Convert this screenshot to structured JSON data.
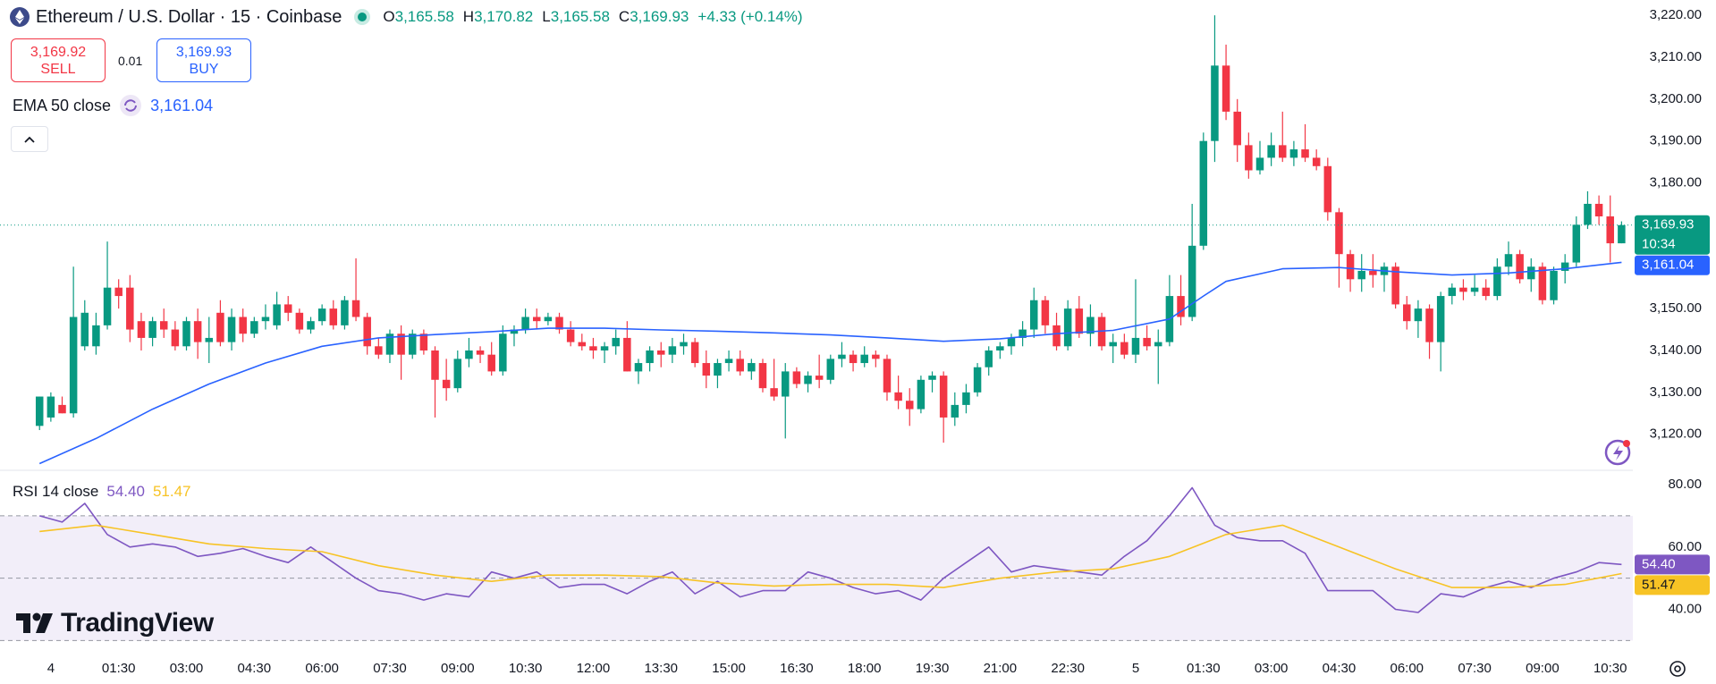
{
  "trade": {
    "sell_price": "3,169.92",
    "sell": "SELL",
    "spread": "0.01",
    "buy_price": "3,169.93",
    "buy": "BUY"
  },
  "logo": "TradingView",
  "chart_data": [
    {
      "type": "candlestick",
      "title": "Ethereum / U.S. Dollar · 15 · Coinbase",
      "ohlc_labels": [
        {
          "key": "O",
          "value": "3,165.58"
        },
        {
          "key": "H",
          "value": "3,170.82"
        },
        {
          "key": "L",
          "value": "3,165.58"
        },
        {
          "key": "C",
          "value": "3,169.93"
        }
      ],
      "change": "+4.33 (+0.14%)",
      "last_price_label": "3,169.93",
      "countdown": "10:34",
      "xlim": [
        -3.5,
        141
      ],
      "ylim": [
        3111.4,
        3223.65
      ],
      "yticks": [
        {
          "value": 3120,
          "label": "3,120.00"
        },
        {
          "value": 3130,
          "label": "3,130.00"
        },
        {
          "value": 3140,
          "label": "3,140.00"
        },
        {
          "value": 3150,
          "label": "3,150.00"
        },
        {
          "value": 3160,
          "label": "3,160.00"
        },
        {
          "value": 3170,
          "label": "3,170.00"
        },
        {
          "value": 3180,
          "label": "3,180.00"
        },
        {
          "value": 3190,
          "label": "3,190.00"
        },
        {
          "value": 3200,
          "label": "3,200.00"
        },
        {
          "value": 3210,
          "label": "3,210.00"
        },
        {
          "value": 3220,
          "label": "3,220.00"
        }
      ],
      "candles": {
        "color_up": "#089981",
        "color_down": "#f23645",
        "open": [
          3122,
          3124,
          3127,
          3125,
          3141,
          3141,
          3146,
          3155,
          3155,
          3147,
          3143,
          3147,
          3145,
          3141,
          3147,
          3142,
          3149,
          3142,
          3148,
          3144,
          3147,
          3146,
          3151,
          3149,
          3145,
          3147,
          3150,
          3146,
          3152,
          3148,
          3141,
          3139,
          3144,
          3139,
          3144,
          3140,
          3133,
          3131,
          3138,
          3140,
          3139,
          3135,
          3144,
          3145,
          3148,
          3147,
          3148,
          3145,
          3142,
          3141,
          3140,
          3141,
          3143,
          3135,
          3137,
          3140,
          3139,
          3141,
          3142,
          3137,
          3134,
          3137,
          3138,
          3135,
          3137,
          3131,
          3129,
          3135,
          3132,
          3134,
          3133,
          3138,
          3139,
          3137,
          3139,
          3138,
          3130,
          3128,
          3126,
          3133,
          3134,
          3124,
          3127,
          3130,
          3136,
          3140,
          3141,
          3143,
          3145,
          3152,
          3146,
          3141,
          3150,
          3144,
          3148,
          3141,
          3142,
          3139,
          3143,
          3141,
          3142,
          3153,
          3148,
          3165,
          3190,
          3208,
          3197,
          3189,
          3183,
          3186,
          3189,
          3186,
          3188,
          3186,
          3184,
          3173,
          3163,
          3157,
          3159,
          3158,
          3160,
          3151,
          3147,
          3150,
          3142,
          3153,
          3155,
          3154,
          3155,
          3153,
          3160,
          3163,
          3157,
          3160,
          3152,
          3159,
          3161,
          3170,
          3175,
          3172,
          3165.58
        ],
        "high": [
          3129,
          3130,
          3129,
          3160,
          3152,
          3149,
          3166,
          3157,
          3158,
          3149,
          3148,
          3150,
          3147,
          3148,
          3150,
          3148,
          3152,
          3150,
          3150,
          3148,
          3151,
          3154,
          3153,
          3150,
          3148,
          3151,
          3152,
          3153,
          3162,
          3149,
          3143,
          3145,
          3146,
          3145,
          3145,
          3141,
          3138,
          3140,
          3143,
          3141,
          3142,
          3146,
          3146,
          3150,
          3150,
          3149,
          3149,
          3147,
          3144,
          3143,
          3142,
          3145,
          3147,
          3138,
          3141,
          3142,
          3143,
          3144,
          3143,
          3140,
          3138,
          3140,
          3140,
          3138,
          3138,
          3138,
          3137,
          3136,
          3135,
          3139,
          3139,
          3142,
          3140,
          3141,
          3140,
          3139,
          3134,
          3131,
          3134,
          3135,
          3135,
          3130,
          3132,
          3137,
          3141,
          3142,
          3144,
          3147,
          3155,
          3153,
          3149,
          3152,
          3153,
          3151,
          3149,
          3144,
          3144,
          3157,
          3146,
          3145,
          3158,
          3158,
          3175,
          3192,
          3220,
          3213,
          3200,
          3192,
          3190,
          3192,
          3197,
          3190,
          3194,
          3188,
          3186,
          3174,
          3164,
          3163,
          3163,
          3161,
          3161,
          3153,
          3152,
          3151,
          3154,
          3156,
          3157,
          3158,
          3157,
          3162,
          3166,
          3164,
          3162,
          3161,
          3160,
          3163,
          3172,
          3178,
          3177,
          3177,
          3170.82
        ],
        "low": [
          3121,
          3123,
          3125,
          3124,
          3140,
          3139,
          3145,
          3150,
          3142,
          3140,
          3141,
          3143,
          3140,
          3140,
          3138,
          3137,
          3141,
          3140,
          3142,
          3143,
          3145,
          3145,
          3147,
          3144,
          3144,
          3146,
          3145,
          3145,
          3147,
          3139,
          3138,
          3137,
          3133,
          3138,
          3139,
          3124,
          3128,
          3130,
          3136,
          3137,
          3134,
          3134,
          3141,
          3144,
          3145,
          3146,
          3144,
          3141,
          3140,
          3138,
          3137,
          3139,
          3135,
          3132,
          3135,
          3136,
          3137,
          3139,
          3136,
          3131,
          3131,
          3135,
          3134,
          3133,
          3130,
          3128,
          3119,
          3131,
          3130,
          3131,
          3132,
          3136,
          3135,
          3136,
          3136,
          3128,
          3126,
          3122,
          3125,
          3130,
          3118,
          3122,
          3125,
          3129,
          3134,
          3138,
          3139,
          3141,
          3143,
          3144,
          3140,
          3140,
          3143,
          3141,
          3140,
          3137,
          3138,
          3137,
          3140,
          3132,
          3141,
          3146,
          3147,
          3164,
          3185,
          3195,
          3185,
          3181,
          3182,
          3184,
          3185,
          3184,
          3185,
          3183,
          3171,
          3155,
          3154,
          3154,
          3155,
          3154,
          3150,
          3145,
          3143,
          3138,
          3135,
          3151,
          3152,
          3153,
          3152,
          3152,
          3158,
          3156,
          3154,
          3151,
          3151,
          3156,
          3160,
          3169,
          3170,
          3161,
          3165.58
        ],
        "close": [
          3129,
          3129,
          3125,
          3148,
          3149,
          3146,
          3155,
          3153,
          3145,
          3143,
          3147,
          3145,
          3141,
          3147,
          3142,
          3143,
          3142,
          3148,
          3144,
          3147,
          3148,
          3151,
          3149,
          3145,
          3147,
          3150,
          3146,
          3152,
          3148,
          3141,
          3139,
          3144,
          3139,
          3144,
          3140,
          3133,
          3131,
          3138,
          3140,
          3139,
          3135,
          3144,
          3145,
          3148,
          3147,
          3148,
          3145,
          3142,
          3141,
          3140,
          3141,
          3143,
          3135,
          3137,
          3140,
          3139,
          3141,
          3142,
          3137,
          3134,
          3137,
          3138,
          3135,
          3137,
          3131,
          3129,
          3135,
          3132,
          3134,
          3133,
          3138,
          3139,
          3137,
          3139,
          3138,
          3130,
          3128,
          3126,
          3133,
          3134,
          3124,
          3127,
          3130,
          3136,
          3140,
          3141,
          3143,
          3145,
          3152,
          3146,
          3141,
          3150,
          3144,
          3148,
          3141,
          3142,
          3139,
          3143,
          3141,
          3142,
          3153,
          3148,
          3165,
          3190,
          3208,
          3197,
          3189,
          3183,
          3186,
          3189,
          3186,
          3188,
          3186,
          3184,
          3173,
          3163,
          3157,
          3159,
          3158,
          3160,
          3151,
          3147,
          3150,
          3142,
          3153,
          3155,
          3154,
          3155,
          3153,
          3160,
          3163,
          3157,
          3160,
          3152,
          3159,
          3161,
          3170,
          3175,
          3172,
          3165.58,
          3169.93
        ]
      },
      "series": [
        {
          "name": "EMA 50 close",
          "color": "#2962ff",
          "last_label": "3,161.04",
          "x": [
            0,
            5,
            10,
            15,
            20,
            25,
            30,
            35,
            40,
            45,
            50,
            55,
            60,
            65,
            70,
            75,
            80,
            85,
            90,
            95,
            100,
            103,
            105,
            110,
            115,
            120,
            125,
            130,
            135,
            140
          ],
          "values": [
            3113,
            3119,
            3126,
            3132,
            3137,
            3141,
            3143,
            3143.8,
            3144.5,
            3145.3,
            3145.3,
            3144.9,
            3144.6,
            3144.2,
            3143.7,
            3143,
            3142.2,
            3142.8,
            3144,
            3144.8,
            3147.5,
            3153,
            3156.5,
            3159.5,
            3159.8,
            3158.8,
            3158,
            3158.5,
            3159.5,
            3161.04
          ]
        }
      ]
    },
    {
      "type": "line",
      "title": "RSI 14 close",
      "xlim": [
        -3.5,
        141
      ],
      "ylim": [
        28.4,
        84.6
      ],
      "yticks": [
        {
          "value": 40,
          "label": "40.00"
        },
        {
          "value": 60,
          "label": "60.00"
        },
        {
          "value": 80,
          "label": "80.00"
        }
      ],
      "levels": [
        70,
        50,
        30
      ],
      "band_color": "#7e57c2",
      "xticks": [
        {
          "value": 1,
          "label": "4"
        },
        {
          "value": 7,
          "label": "01:30"
        },
        {
          "value": 13,
          "label": "03:00"
        },
        {
          "value": 19,
          "label": "04:30"
        },
        {
          "value": 25,
          "label": "06:00"
        },
        {
          "value": 31,
          "label": "07:30"
        },
        {
          "value": 37,
          "label": "09:00"
        },
        {
          "value": 43,
          "label": "10:30"
        },
        {
          "value": 49,
          "label": "12:00"
        },
        {
          "value": 55,
          "label": "13:30"
        },
        {
          "value": 61,
          "label": "15:00"
        },
        {
          "value": 67,
          "label": "16:30"
        },
        {
          "value": 73,
          "label": "18:00"
        },
        {
          "value": 79,
          "label": "19:30"
        },
        {
          "value": 85,
          "label": "21:00"
        },
        {
          "value": 91,
          "label": "22:30"
        },
        {
          "value": 97,
          "label": "5"
        },
        {
          "value": 103,
          "label": "01:30"
        },
        {
          "value": 109,
          "label": "03:00"
        },
        {
          "value": 115,
          "label": "04:30"
        },
        {
          "value": 121,
          "label": "06:00"
        },
        {
          "value": 127,
          "label": "07:30"
        },
        {
          "value": 133,
          "label": "09:00"
        },
        {
          "value": 139,
          "label": "10:30"
        }
      ],
      "series": [
        {
          "color": "#7e57c2",
          "last_label": "54.40",
          "x": [
            0,
            2,
            4,
            6,
            8,
            10,
            12,
            14,
            16,
            18,
            20,
            22,
            24,
            26,
            28,
            30,
            32,
            34,
            36,
            38,
            40,
            42,
            44,
            46,
            48,
            50,
            52,
            54,
            56,
            58,
            60,
            62,
            64,
            66,
            68,
            70,
            72,
            74,
            76,
            78,
            80,
            82,
            84,
            86,
            88,
            90,
            92,
            94,
            96,
            98,
            100,
            102,
            104,
            106,
            108,
            110,
            112,
            114,
            116,
            118,
            120,
            122,
            124,
            126,
            128,
            130,
            132,
            134,
            136,
            138,
            140
          ],
          "values": [
            70,
            68,
            74,
            64,
            60,
            61,
            60,
            57,
            58,
            59.5,
            57,
            55,
            60,
            55,
            50,
            46,
            45,
            43,
            45,
            44,
            52,
            50,
            52,
            47,
            48,
            48,
            45,
            49,
            52,
            45,
            49,
            44,
            46,
            46,
            52,
            50,
            47,
            45,
            46,
            43,
            50,
            55,
            60,
            52,
            54,
            53,
            52,
            51,
            57,
            62,
            70,
            79,
            67,
            63,
            62,
            62,
            58,
            46,
            46,
            46,
            40,
            39,
            45,
            44,
            47,
            49,
            47,
            50,
            52,
            55,
            54.4
          ]
        },
        {
          "color": "#f7c325",
          "last_label": "51.47",
          "x": [
            0,
            5,
            10,
            15,
            20,
            25,
            30,
            35,
            40,
            45,
            50,
            55,
            60,
            65,
            70,
            75,
            80,
            85,
            90,
            95,
            100,
            105,
            110,
            115,
            120,
            125,
            130,
            135,
            140
          ],
          "values": [
            65,
            67,
            64,
            61,
            59.5,
            58.5,
            54,
            51,
            49,
            51,
            51,
            50.5,
            48.5,
            47.5,
            48,
            48,
            47,
            50,
            52,
            53,
            57,
            64,
            67,
            60,
            53,
            47,
            47,
            48,
            51.47
          ]
        }
      ]
    }
  ]
}
